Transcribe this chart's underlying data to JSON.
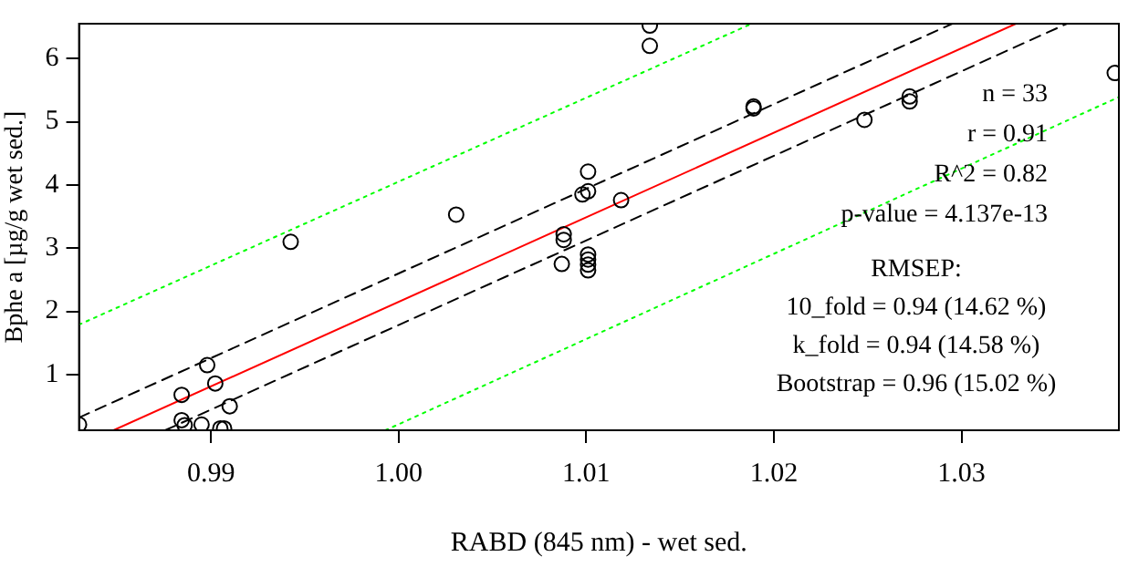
{
  "chart_data": {
    "type": "scatter",
    "xlabel": "RABD (845 nm) - wet sed.",
    "ylabel": "Bphe a [µg/g wet sed.]",
    "xlim": [
      0.98297,
      1.03839
    ],
    "ylim": [
      0.12,
      6.55
    ],
    "xticks": [
      0.99,
      {
        "value": 1,
        "label": "1.00"
      },
      1.01,
      1.02,
      1.03
    ],
    "yticks": [
      1,
      2,
      3,
      4,
      5,
      6
    ],
    "grid": false,
    "legend": false,
    "marker": "circle",
    "series": [
      {
        "type": "scatter",
        "color": "#000000",
        "x": [
          0.98297,
          0.98844,
          0.9898,
          0.99023,
          0.991,
          0.98844,
          0.9886,
          0.9895,
          0.9905,
          0.9907,
          0.99425,
          1.00307,
          1.0088,
          1.0088,
          1.0087,
          1.0098,
          1.0101,
          1.0101,
          1.0101,
          1.0101,
          1.0101,
          1.0101,
          1.01186,
          1.01339,
          1.01339,
          1.01892,
          1.01892,
          1.02483,
          1.02724,
          1.02724,
          1.03817
        ],
        "values": [
          0.21,
          0.68,
          1.15,
          0.86,
          0.5,
          0.28,
          0.2,
          0.21,
          0.15,
          0.15,
          3.1,
          3.53,
          3.22,
          3.13,
          2.75,
          3.85,
          4.21,
          3.9,
          2.9,
          2.82,
          2.74,
          2.65,
          3.76,
          6.2,
          6.52,
          5.21,
          5.24,
          5.03,
          5.4,
          5.32,
          5.77
        ]
      },
      {
        "type": "line",
        "color": "#ff0000",
        "line_style": "solid",
        "marker": "none",
        "x": [
          0.98481,
          1.0329
        ],
        "values": [
          0.12,
          6.55
        ]
      },
      {
        "type": "line",
        "color": "#000000",
        "line_style": "dashed",
        "marker": "none",
        "x": [
          0.98297,
          1.02951
        ],
        "values": [
          0.32,
          6.55
        ]
      },
      {
        "type": "line",
        "color": "#000000",
        "line_style": "dashed",
        "marker": "none",
        "x": [
          0.98756,
          1.03562
        ],
        "values": [
          0.12,
          6.55
        ]
      },
      {
        "type": "line",
        "color": "#00ff00",
        "line_style": "dotted",
        "marker": "none",
        "x": [
          0.98297,
          1.01882
        ],
        "values": [
          1.79,
          6.55
        ]
      },
      {
        "type": "line",
        "color": "#00ff00",
        "line_style": "dotted",
        "marker": "none",
        "x": [
          0.9993,
          1.03839
        ],
        "values": [
          0.12,
          5.39
        ]
      }
    ],
    "annotations": [
      "n = 33",
      "r = 0.91",
      "R^2 = 0.82",
      "p-value = 4.137e-13",
      "RMSEP:",
      "10_fold = 0.94 (14.62 %)",
      "k_fold = 0.94 (14.58 %)",
      "Bootstrap = 0.96 (15.02 %)"
    ]
  }
}
